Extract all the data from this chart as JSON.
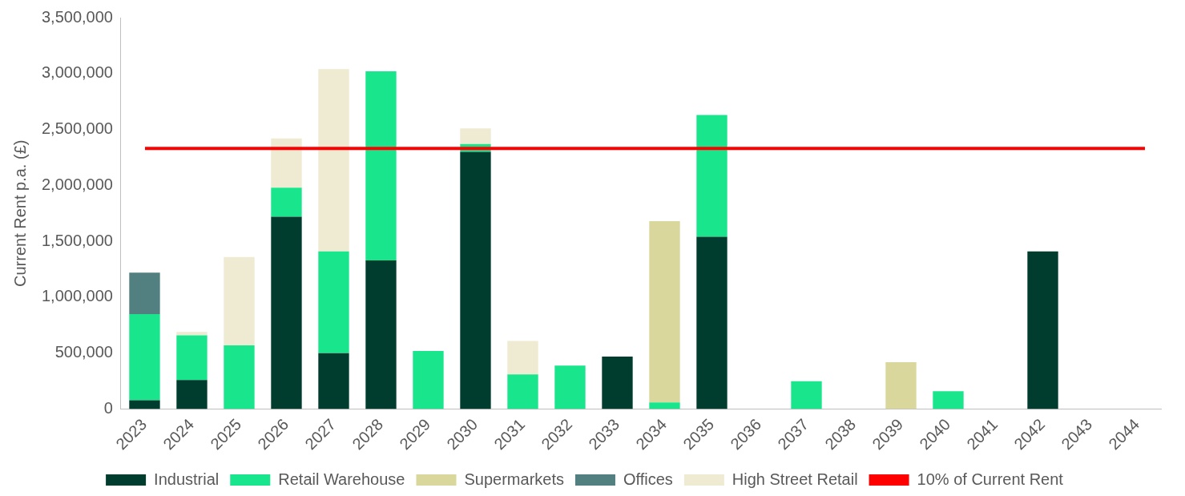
{
  "chart_data": {
    "type": "bar",
    "stacked": true,
    "ylabel": "Current Rent p.a. (£)",
    "legend": "bottom",
    "grid": false,
    "categories": [
      "2023",
      "2024",
      "2025",
      "2026",
      "2027",
      "2028",
      "2029",
      "2030",
      "2031",
      "2032",
      "2033",
      "2034",
      "2035",
      "2036",
      "2037",
      "2038",
      "2039",
      "2040",
      "2041",
      "2042",
      "2043",
      "2044"
    ],
    "ylim": [
      0,
      3500000
    ],
    "yticks": [
      {
        "value": 0,
        "label": "0"
      },
      {
        "value": 500000,
        "label": "500,000"
      },
      {
        "value": 1000000,
        "label": "1,000,000"
      },
      {
        "value": 1500000,
        "label": "1,500,000"
      },
      {
        "value": 2000000,
        "label": "2,000,000"
      },
      {
        "value": 2500000,
        "label": "2,500,000"
      },
      {
        "value": 3000000,
        "label": "3,000,000"
      },
      {
        "value": 3500000,
        "label": "3,500,000"
      }
    ],
    "series": [
      {
        "name": "Industrial",
        "color": "#003d2e",
        "values": [
          80000,
          260000,
          null,
          1720000,
          500000,
          1330000,
          null,
          2300000,
          null,
          null,
          470000,
          null,
          1540000,
          null,
          null,
          null,
          null,
          null,
          null,
          1410000,
          null,
          null
        ]
      },
      {
        "name": "Retail Warehouse",
        "color": "#19e68c",
        "values": [
          770000,
          400000,
          570000,
          260000,
          910000,
          1690000,
          520000,
          70000,
          310000,
          390000,
          null,
          60000,
          1090000,
          null,
          250000,
          null,
          null,
          160000,
          null,
          null,
          null,
          null
        ]
      },
      {
        "name": "Supermarkets",
        "color": "#d9d79b",
        "values": [
          null,
          null,
          null,
          null,
          null,
          null,
          null,
          null,
          null,
          null,
          null,
          1620000,
          null,
          null,
          null,
          null,
          420000,
          null,
          null,
          null,
          null,
          null
        ]
      },
      {
        "name": "Offices",
        "color": "#527f80",
        "values": [
          370000,
          null,
          null,
          null,
          null,
          null,
          null,
          null,
          null,
          null,
          null,
          null,
          null,
          null,
          null,
          null,
          null,
          null,
          null,
          null,
          null,
          null
        ]
      },
      {
        "name": "High Street Retail",
        "color": "#efead2",
        "values": [
          null,
          30000,
          790000,
          440000,
          1630000,
          null,
          null,
          140000,
          300000,
          null,
          null,
          null,
          null,
          null,
          null,
          null,
          null,
          null,
          null,
          null,
          null,
          null
        ]
      }
    ],
    "ref_lines": [
      {
        "axis": "y",
        "value": 2330000,
        "label": "10% of Current Rent",
        "color": "#ff0000"
      }
    ]
  }
}
